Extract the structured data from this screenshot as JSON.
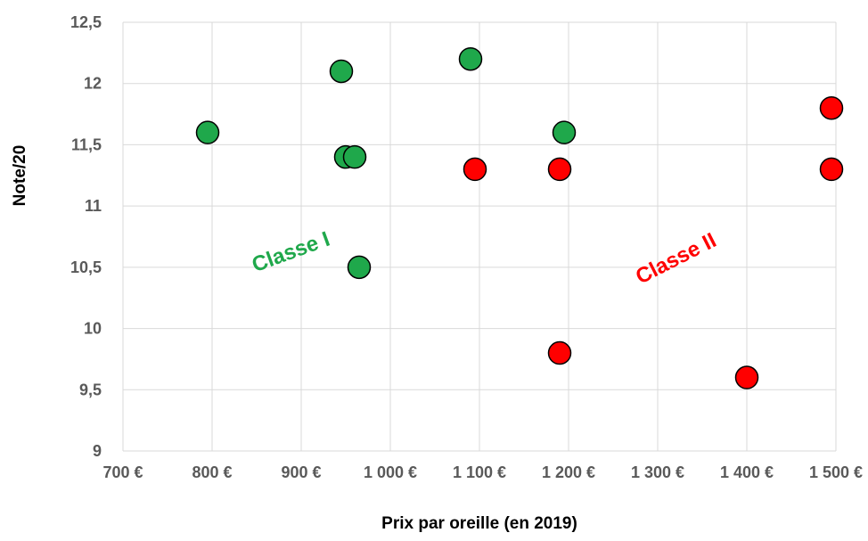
{
  "chart_data": {
    "type": "scatter",
    "title": "",
    "xlabel": "Prix par oreille (en 2019)",
    "ylabel": "Note/20",
    "xlim": [
      700,
      1500
    ],
    "ylim": [
      9,
      12.5
    ],
    "x_ticks": [
      700,
      800,
      900,
      1000,
      1100,
      1200,
      1300,
      1400,
      1500
    ],
    "x_tick_labels": [
      "700 €",
      "800 €",
      "900 €",
      "1 000 €",
      "1 100 €",
      "1 200 €",
      "1 300 €",
      "1 400 €",
      "1 500 €"
    ],
    "y_ticks": [
      9,
      9.5,
      10,
      10.5,
      11,
      11.5,
      12,
      12.5
    ],
    "y_tick_labels": [
      "9",
      "9,5",
      "10",
      "10,5",
      "11",
      "11,5",
      "12",
      "12,5"
    ],
    "grid": true,
    "series": [
      {
        "name": "Classe I",
        "color": "#1fa84b",
        "points": [
          {
            "x": 795,
            "y": 11.6
          },
          {
            "x": 945,
            "y": 12.1
          },
          {
            "x": 950,
            "y": 11.4
          },
          {
            "x": 960,
            "y": 11.4
          },
          {
            "x": 965,
            "y": 10.5
          },
          {
            "x": 1090,
            "y": 12.2
          },
          {
            "x": 1195,
            "y": 11.6
          }
        ]
      },
      {
        "name": "Classe II",
        "color": "#ff0000",
        "points": [
          {
            "x": 1095,
            "y": 11.3
          },
          {
            "x": 1190,
            "y": 11.3
          },
          {
            "x": 1190,
            "y": 9.8
          },
          {
            "x": 1400,
            "y": 9.6
          },
          {
            "x": 1495,
            "y": 11.8
          },
          {
            "x": 1495,
            "y": 11.3
          }
        ]
      }
    ],
    "annotations": [
      {
        "text": "Classe I",
        "color": "#1fa84b"
      },
      {
        "text": "Classe II",
        "color": "#ff0000"
      }
    ]
  }
}
